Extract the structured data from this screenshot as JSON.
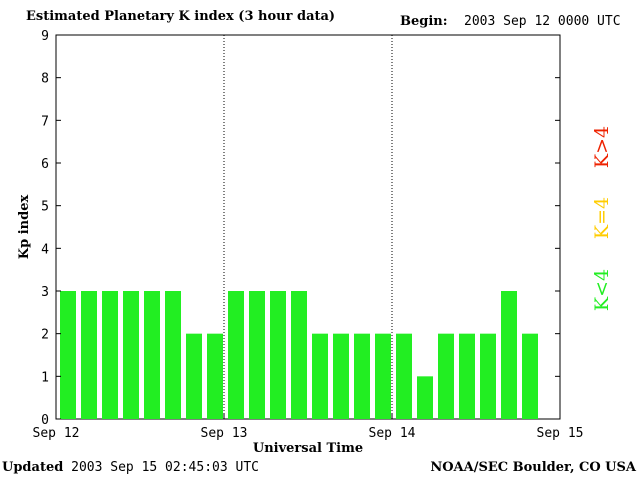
{
  "header": {
    "title": "Estimated Planetary K index (3 hour data)",
    "begin_label": "Begin:",
    "begin_value": "2003 Sep 12 0000 UTC"
  },
  "footer": {
    "updated_label": "Updated",
    "updated_value": "2003 Sep 15 02:45:03 UTC",
    "credit": "NOAA/SEC Boulder, CO USA"
  },
  "legend": [
    {
      "label": "K<4",
      "color": "#22ee22"
    },
    {
      "label": "K=4",
      "color": "#ffcc00"
    },
    {
      "label": "K>4",
      "color": "#ee2200"
    }
  ],
  "chart_data": {
    "type": "bar",
    "title": "Estimated Planetary K index (3 hour data)",
    "xlabel": "Universal Time",
    "ylabel": "Kp index",
    "ylim": [
      0,
      9
    ],
    "yticks": [
      0,
      1,
      2,
      3,
      4,
      5,
      6,
      7,
      8,
      9
    ],
    "x_tick_labels": [
      "Sep 12",
      "Sep 13",
      "Sep 14",
      "Sep 15"
    ],
    "day_separators": [
      "Sep 13",
      "Sep 14"
    ],
    "bar_color": "#22ee22",
    "values": [
      3,
      3,
      3,
      3,
      3,
      3,
      2,
      2,
      3,
      3,
      3,
      3,
      2,
      2,
      2,
      2,
      2,
      1,
      2,
      2,
      2,
      3,
      2
    ]
  }
}
